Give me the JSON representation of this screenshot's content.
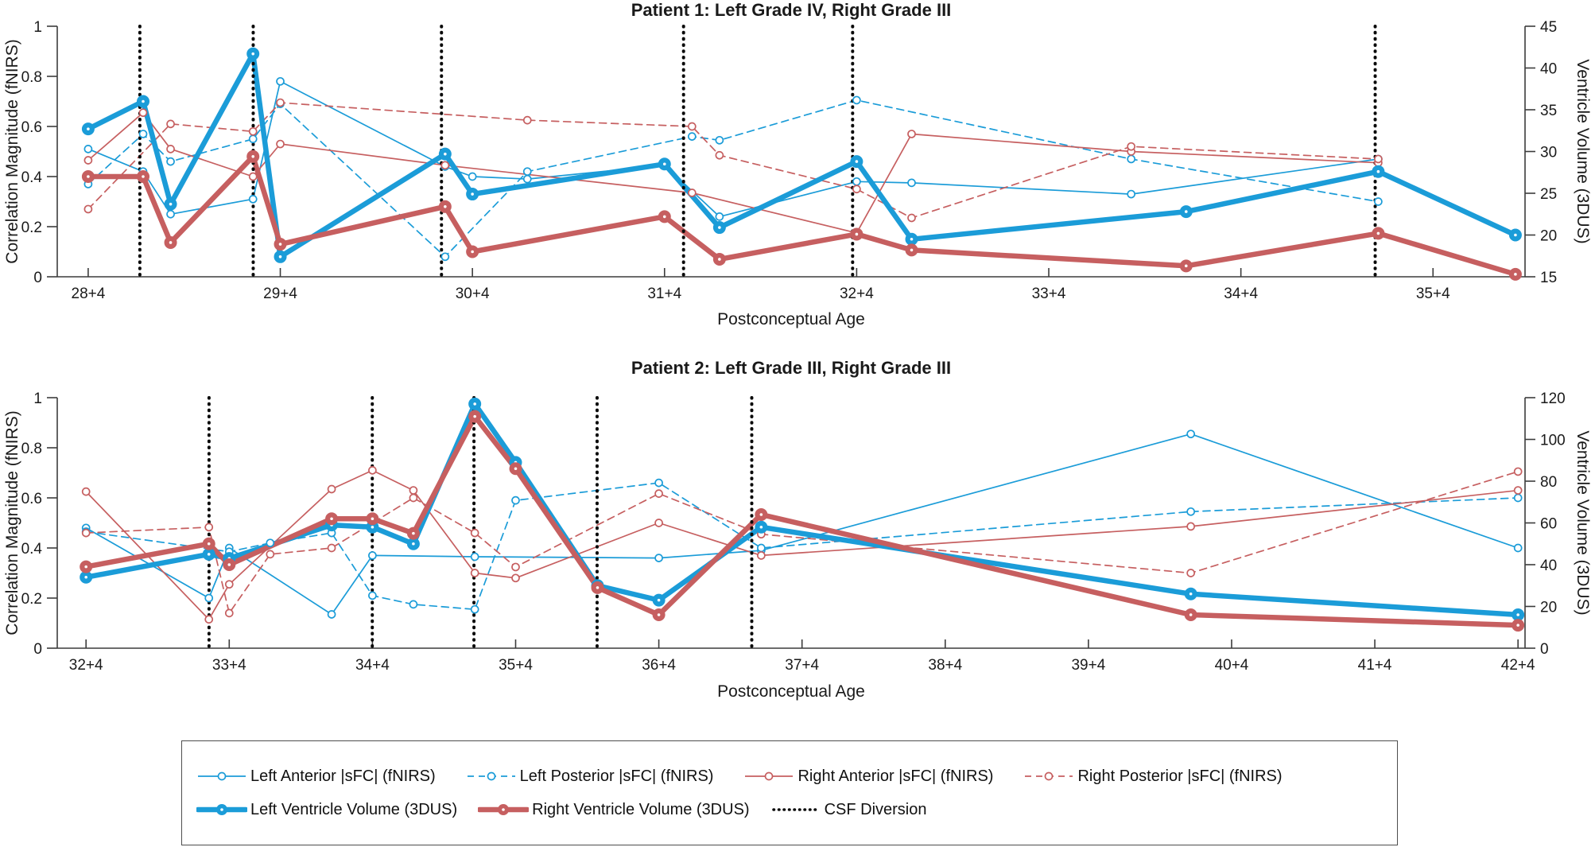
{
  "figure": {
    "background": "#ffffff",
    "colors": {
      "left_blue": "#1B9CD8",
      "right_red": "#C65F60",
      "csf_black": "#0a0a0a",
      "axis": "#3c3c3c",
      "text": "#1a1a1a"
    }
  },
  "chart_data": [
    {
      "type": "line",
      "title": "Patient 1: Left Grade IV, Right Grade III",
      "xlabel": "Postconceptual Age",
      "ylabel_left": "Correlation Magnitude (fNIRS)",
      "ylabel_right": "Ventricle Volume (3DUS)",
      "xlim": [
        28.41,
        36.05
      ],
      "ylim_left": [
        0,
        1
      ],
      "ylim_right": [
        15,
        45
      ],
      "x_ticks": [
        {
          "label": "28+4",
          "x": 28.571
        },
        {
          "label": "29+4",
          "x": 29.571
        },
        {
          "label": "30+4",
          "x": 30.571
        },
        {
          "label": "31+4",
          "x": 31.571
        },
        {
          "label": "32+4",
          "x": 32.571
        },
        {
          "label": "33+4",
          "x": 33.571
        },
        {
          "label": "34+4",
          "x": 34.571
        },
        {
          "label": "35+4",
          "x": 35.571
        }
      ],
      "y_ticks_left": [
        "0",
        "0.2",
        "0.4",
        "0.6",
        "0.8",
        "1"
      ],
      "y_ticks_left_vals": [
        0,
        0.2,
        0.4,
        0.6,
        0.8,
        1
      ],
      "y_ticks_right": [
        "15",
        "20",
        "25",
        "30",
        "35",
        "40",
        "45"
      ],
      "y_ticks_right_vals": [
        15,
        20,
        25,
        30,
        35,
        40,
        45
      ],
      "csf_diversion_x": [
        28.84,
        29.43,
        30.41,
        31.67,
        32.55,
        35.27
      ],
      "series": [
        {
          "name": "Left Anterior |sFC| (fNIRS)",
          "axis": "left",
          "color": "left_blue",
          "style": "thin-solid",
          "x": [
            28.571,
            28.857,
            29.0,
            29.429,
            29.571,
            30.429,
            30.571,
            30.857,
            31.571,
            31.857,
            32.571,
            32.857,
            34.0,
            35.286
          ],
          "y": [
            0.51,
            0.42,
            0.25,
            0.31,
            0.78,
            0.44,
            0.4,
            0.39,
            0.445,
            0.24,
            0.38,
            0.375,
            0.33,
            0.47
          ]
        },
        {
          "name": "Left Posterior |sFC| (fNIRS)",
          "axis": "left",
          "color": "left_blue",
          "style": "thin-dashed",
          "x": [
            28.571,
            28.857,
            29.0,
            29.429,
            29.571,
            30.429,
            30.857,
            31.714,
            31.857,
            32.571,
            34.0,
            35.286
          ],
          "y": [
            0.37,
            0.57,
            0.46,
            0.55,
            0.69,
            0.08,
            0.42,
            0.56,
            0.545,
            0.705,
            0.47,
            0.3
          ]
        },
        {
          "name": "Right Anterior |sFC| (fNIRS)",
          "axis": "left",
          "color": "right_red",
          "style": "thin-solid",
          "x": [
            28.571,
            28.857,
            29.0,
            29.429,
            29.571,
            30.429,
            31.714,
            32.571,
            32.857,
            34.0,
            35.286
          ],
          "y": [
            0.465,
            0.655,
            0.51,
            0.4,
            0.53,
            0.445,
            0.335,
            0.175,
            0.57,
            0.5,
            0.455
          ]
        },
        {
          "name": "Right Posterior |sFC| (fNIRS)",
          "axis": "left",
          "color": "right_red",
          "style": "thin-dashed",
          "x": [
            28.571,
            29.0,
            29.429,
            29.571,
            30.857,
            31.714,
            31.857,
            32.571,
            32.857,
            34.0,
            35.286
          ],
          "y": [
            0.27,
            0.61,
            0.58,
            0.695,
            0.625,
            0.6,
            0.485,
            0.35,
            0.235,
            0.52,
            0.47
          ]
        },
        {
          "name": "Left Ventricle Volume (3DUS)",
          "axis": "right",
          "color": "left_blue",
          "style": "thick-solid",
          "x": [
            28.571,
            28.857,
            29.0,
            29.429,
            29.571,
            30.429,
            30.571,
            31.571,
            31.857,
            32.571,
            32.857,
            34.286,
            35.286,
            36.0
          ],
          "y": [
            32.7,
            36.0,
            23.7,
            41.7,
            17.4,
            29.7,
            24.9,
            28.5,
            20.9,
            28.8,
            19.5,
            22.8,
            27.6,
            20.0
          ]
        },
        {
          "name": "Right Ventricle Volume (3DUS)",
          "axis": "right",
          "color": "right_red",
          "style": "thick-solid",
          "x": [
            28.571,
            28.857,
            29.0,
            29.429,
            29.571,
            30.429,
            30.571,
            31.571,
            31.857,
            32.571,
            32.857,
            34.286,
            35.286,
            36.0
          ],
          "y": [
            27.0,
            27.0,
            19.1,
            29.4,
            18.9,
            23.4,
            18.0,
            22.2,
            17.1,
            20.1,
            18.2,
            16.3,
            20.2,
            15.3
          ]
        }
      ]
    },
    {
      "type": "line",
      "title": "Patient 2: Left Grade III, Right Grade III",
      "xlabel": "Postconceptual Age",
      "ylabel_left": "Correlation Magnitude (fNIRS)",
      "ylabel_right": "Ventricle Volume (3DUS)",
      "xlim": [
        32.37,
        42.62
      ],
      "ylim_left": [
        0,
        1
      ],
      "ylim_right": [
        0,
        120
      ],
      "x_ticks": [
        {
          "label": "32+4",
          "x": 32.571
        },
        {
          "label": "33+4",
          "x": 33.571
        },
        {
          "label": "34+4",
          "x": 34.571
        },
        {
          "label": "35+4",
          "x": 35.571
        },
        {
          "label": "36+4",
          "x": 36.571
        },
        {
          "label": "37+4",
          "x": 37.571
        },
        {
          "label": "38+4",
          "x": 38.571
        },
        {
          "label": "39+4",
          "x": 39.571
        },
        {
          "label": "40+4",
          "x": 40.571
        },
        {
          "label": "41+4",
          "x": 41.571
        },
        {
          "label": "42+4",
          "x": 42.571
        }
      ],
      "y_ticks_left": [
        "0",
        "0.2",
        "0.4",
        "0.6",
        "0.8",
        "1"
      ],
      "y_ticks_left_vals": [
        0,
        0.2,
        0.4,
        0.6,
        0.8,
        1
      ],
      "y_ticks_right": [
        "0",
        "20",
        "40",
        "60",
        "80",
        "100",
        "120"
      ],
      "y_ticks_right_vals": [
        0,
        20,
        40,
        60,
        80,
        100,
        120
      ],
      "csf_diversion_x": [
        33.43,
        34.57,
        35.28,
        36.14,
        37.22
      ],
      "series": [
        {
          "name": "Left Anterior |sFC| (fNIRS)",
          "axis": "left",
          "color": "left_blue",
          "style": "thin-solid",
          "x": [
            32.571,
            33.429,
            33.571,
            34.286,
            34.571,
            35.286,
            36.571,
            37.286,
            40.286,
            42.571
          ],
          "y": [
            0.48,
            0.2,
            0.4,
            0.135,
            0.37,
            0.365,
            0.36,
            0.39,
            0.855,
            0.4
          ]
        },
        {
          "name": "Left Posterior |sFC| (fNIRS)",
          "axis": "left",
          "color": "left_blue",
          "style": "thin-dashed",
          "x": [
            32.571,
            33.571,
            33.857,
            34.286,
            34.571,
            34.857,
            35.286,
            35.571,
            36.571,
            37.286,
            40.286,
            42.571
          ],
          "y": [
            0.465,
            0.385,
            0.42,
            0.46,
            0.21,
            0.175,
            0.155,
            0.59,
            0.66,
            0.4,
            0.545,
            0.6
          ]
        },
        {
          "name": "Right Anterior |sFC| (fNIRS)",
          "axis": "left",
          "color": "right_red",
          "style": "thin-solid",
          "x": [
            32.571,
            33.429,
            33.571,
            34.286,
            34.571,
            34.857,
            35.286,
            35.571,
            36.571,
            37.286,
            40.286,
            42.571
          ],
          "y": [
            0.625,
            0.115,
            0.255,
            0.635,
            0.71,
            0.63,
            0.3,
            0.28,
            0.5,
            0.37,
            0.486,
            0.63
          ]
        },
        {
          "name": "Right Posterior |sFC| (fNIRS)",
          "axis": "left",
          "color": "right_red",
          "style": "thin-dashed",
          "x": [
            32.571,
            33.429,
            33.571,
            33.857,
            34.286,
            34.857,
            35.286,
            35.571,
            36.571,
            37.286,
            40.286,
            42.571
          ],
          "y": [
            0.46,
            0.483,
            0.14,
            0.375,
            0.4,
            0.6,
            0.46,
            0.324,
            0.617,
            0.455,
            0.3,
            0.705
          ]
        },
        {
          "name": "Left Ventricle Volume (3DUS)",
          "axis": "right",
          "color": "left_blue",
          "style": "thick-solid",
          "x": [
            32.571,
            33.429,
            33.571,
            34.286,
            34.571,
            34.857,
            35.286,
            35.571,
            36.143,
            36.571,
            37.286,
            40.286,
            42.571
          ],
          "y": [
            34,
            45,
            43,
            59,
            58,
            50,
            117,
            89,
            30,
            23,
            58,
            26,
            16
          ]
        },
        {
          "name": "Right Ventricle Volume (3DUS)",
          "axis": "right",
          "color": "right_red",
          "style": "thick-solid",
          "x": [
            32.571,
            33.429,
            33.571,
            34.286,
            34.571,
            34.857,
            35.286,
            35.571,
            36.143,
            36.571,
            37.286,
            40.286,
            42.571
          ],
          "y": [
            39,
            50,
            40,
            62,
            62,
            55,
            111,
            86,
            29,
            16,
            64,
            16,
            11
          ]
        }
      ]
    }
  ],
  "legend": {
    "rows": [
      [
        {
          "label": "Left Anterior |sFC| (fNIRS)",
          "swatch": "thin-solid",
          "color": "left_blue"
        },
        {
          "label": "Left Posterior |sFC| (fNIRS)",
          "swatch": "thin-dashed",
          "color": "left_blue"
        },
        {
          "label": "Right Anterior |sFC| (fNIRS)",
          "swatch": "thin-solid",
          "color": "right_red"
        },
        {
          "label": "Right Posterior |sFC| (fNIRS)",
          "swatch": "thin-dashed",
          "color": "right_red"
        }
      ],
      [
        {
          "label": "Left Ventricle Volume (3DUS)",
          "swatch": "thick-solid",
          "color": "left_blue"
        },
        {
          "label": "Right Ventricle Volume (3DUS)",
          "swatch": "thick-solid",
          "color": "right_red"
        },
        {
          "label": "CSF Diversion",
          "swatch": "dotted",
          "color": "csf_black"
        }
      ]
    ]
  }
}
